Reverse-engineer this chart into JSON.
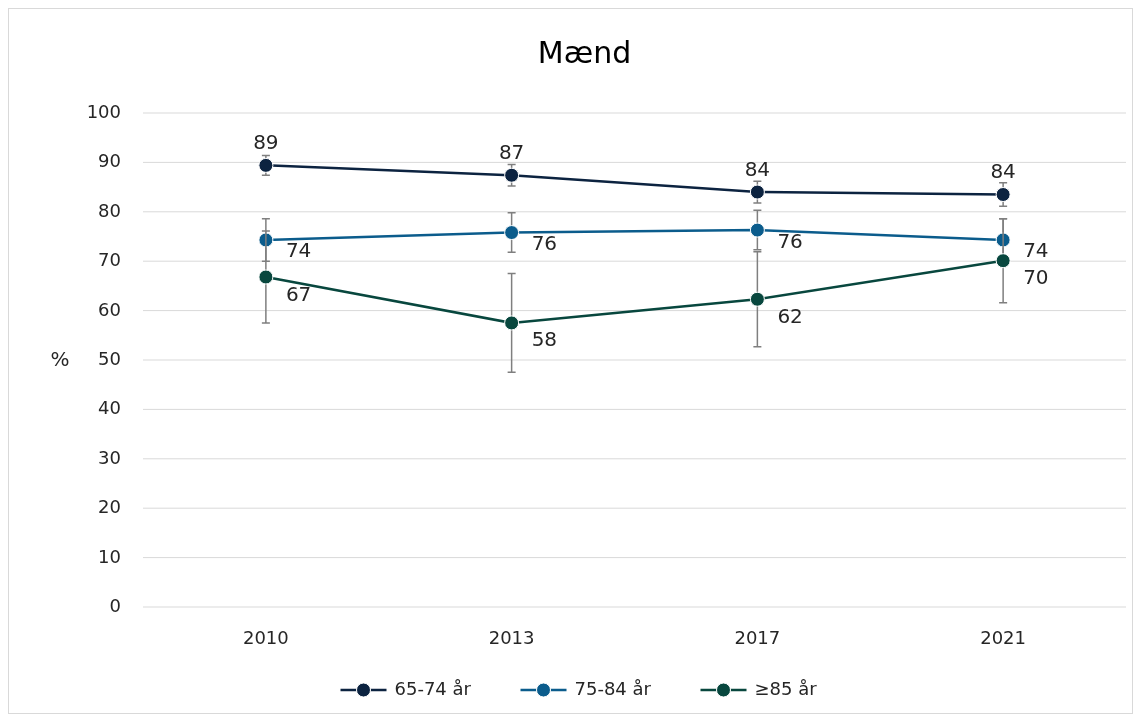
{
  "chart_data": {
    "type": "line",
    "title": "Mænd",
    "ylabel": "%",
    "categories": [
      "2010",
      "2013",
      "2017",
      "2021"
    ],
    "series": [
      {
        "name": "65-74 år",
        "color": "#0c2340",
        "values": [
          89.4,
          87.4,
          84,
          83.5
        ],
        "errors": [
          2,
          2.2,
          2.2,
          2.4
        ],
        "value_labels": [
          "89",
          "87",
          "84",
          "84"
        ]
      },
      {
        "name": "75-84 år",
        "color": "#0b5c8c",
        "values": [
          74.3,
          75.8,
          76.3,
          74.3
        ],
        "errors": [
          4.3,
          4,
          4,
          4.3
        ],
        "value_labels": [
          "74",
          "76",
          "76",
          "74"
        ]
      },
      {
        "name": "≥85 år",
        "color": "#08473e",
        "values": [
          66.8,
          57.5,
          62.3,
          70.1
        ],
        "errors": [
          9.3,
          10,
          9.6,
          8.5
        ],
        "value_labels": [
          "67",
          "58",
          "62",
          "70"
        ]
      }
    ],
    "ylim": [
      0,
      100
    ],
    "yticks": [
      0,
      10,
      20,
      30,
      40,
      50,
      60,
      70,
      80,
      90,
      100
    ],
    "grid": "y",
    "legend": "bottom",
    "marker": "circle",
    "line_style": "solid"
  }
}
